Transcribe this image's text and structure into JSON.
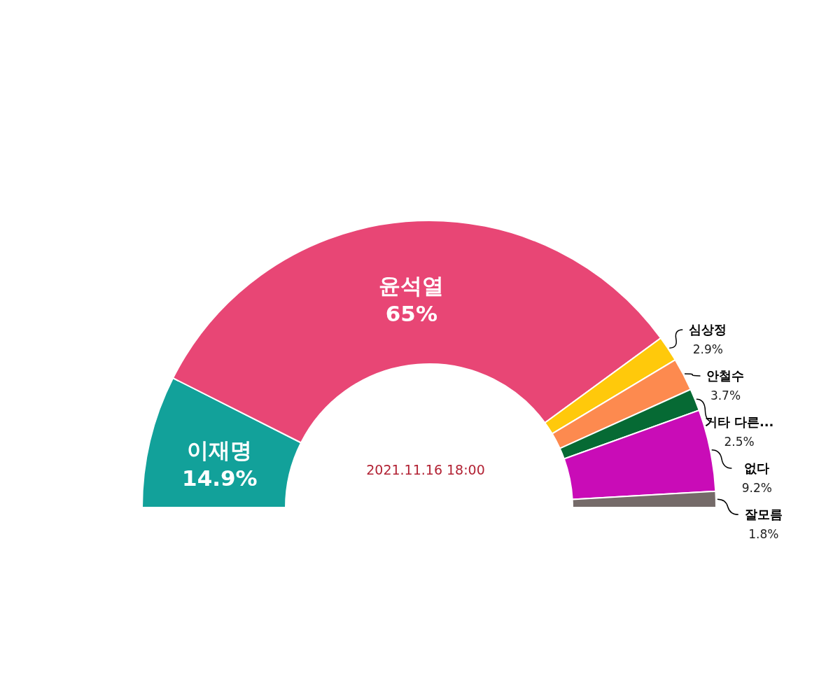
{
  "chart_data": {
    "type": "donut",
    "categories": [
      "이재명",
      "윤석열",
      "심상정",
      "안철수",
      "기타 다른...",
      "없다",
      "잘모름"
    ],
    "values": [
      14.9,
      65,
      2.9,
      3.7,
      2.5,
      9.2,
      1.8
    ],
    "colors": [
      "#12a19a",
      "#e84675",
      "#ffc90b",
      "#fd8a4f",
      "#066a34",
      "#c90cb7",
      "#756b69"
    ],
    "value_labels": [
      "14.9%",
      "65%",
      "2.9%",
      "3.7%",
      "2.5%",
      "9.2%",
      "1.8%"
    ],
    "annotations": [
      "2021.11.16 18:00"
    ]
  }
}
